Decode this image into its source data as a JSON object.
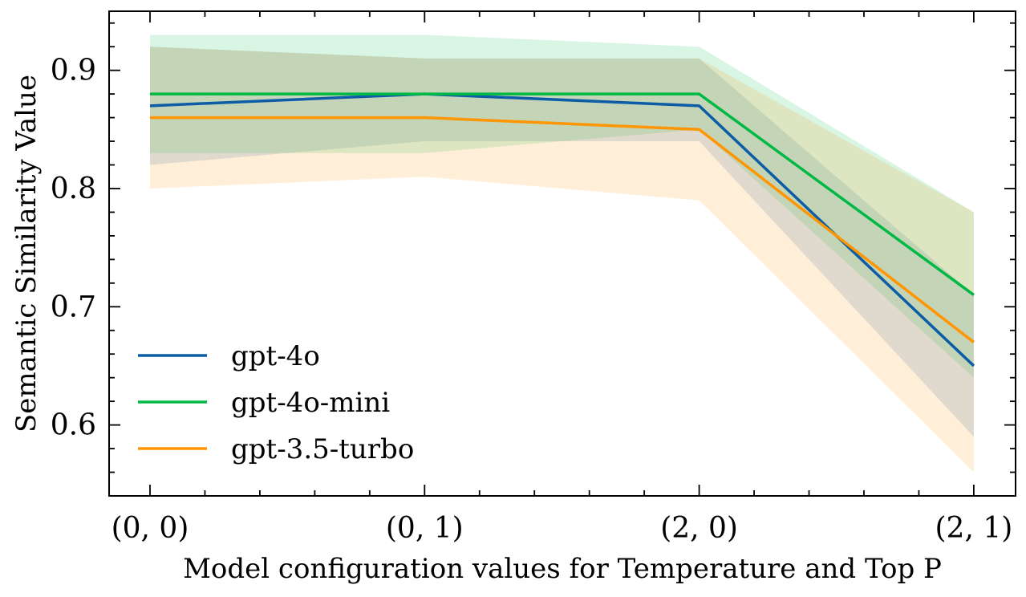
{
  "chart_data": {
    "type": "line",
    "title": "",
    "xlabel": "Model configuration values for Temperature and Top P",
    "ylabel": "Semantic Similarity Value",
    "categories": [
      "(0, 0)",
      "(0, 1)",
      "(2, 0)",
      "(2, 1)"
    ],
    "ylim": [
      0.54,
      0.95
    ],
    "yticks": [
      0.6,
      0.7,
      0.8,
      0.9
    ],
    "ytick_labels": [
      "0.6",
      "0.7",
      "0.8",
      "0.9"
    ],
    "series": [
      {
        "name": "gpt-4o",
        "color": "#0C5DA5",
        "values": [
          0.87,
          0.88,
          0.87,
          0.65
        ],
        "lower": [
          0.82,
          0.84,
          0.84,
          0.59
        ],
        "upper": [
          0.92,
          0.91,
          0.91,
          0.71
        ]
      },
      {
        "name": "gpt-4o-mini",
        "color": "#00B945",
        "values": [
          0.88,
          0.88,
          0.88,
          0.71
        ],
        "lower": [
          0.83,
          0.83,
          0.85,
          0.64
        ],
        "upper": [
          0.93,
          0.93,
          0.92,
          0.78
        ]
      },
      {
        "name": "gpt-3.5-turbo",
        "color": "#FF9500",
        "values": [
          0.86,
          0.86,
          0.85,
          0.67
        ],
        "lower": [
          0.8,
          0.81,
          0.79,
          0.56
        ],
        "upper": [
          0.92,
          0.91,
          0.91,
          0.78
        ]
      }
    ],
    "legend_position": "lower-left",
    "grid": false
  }
}
